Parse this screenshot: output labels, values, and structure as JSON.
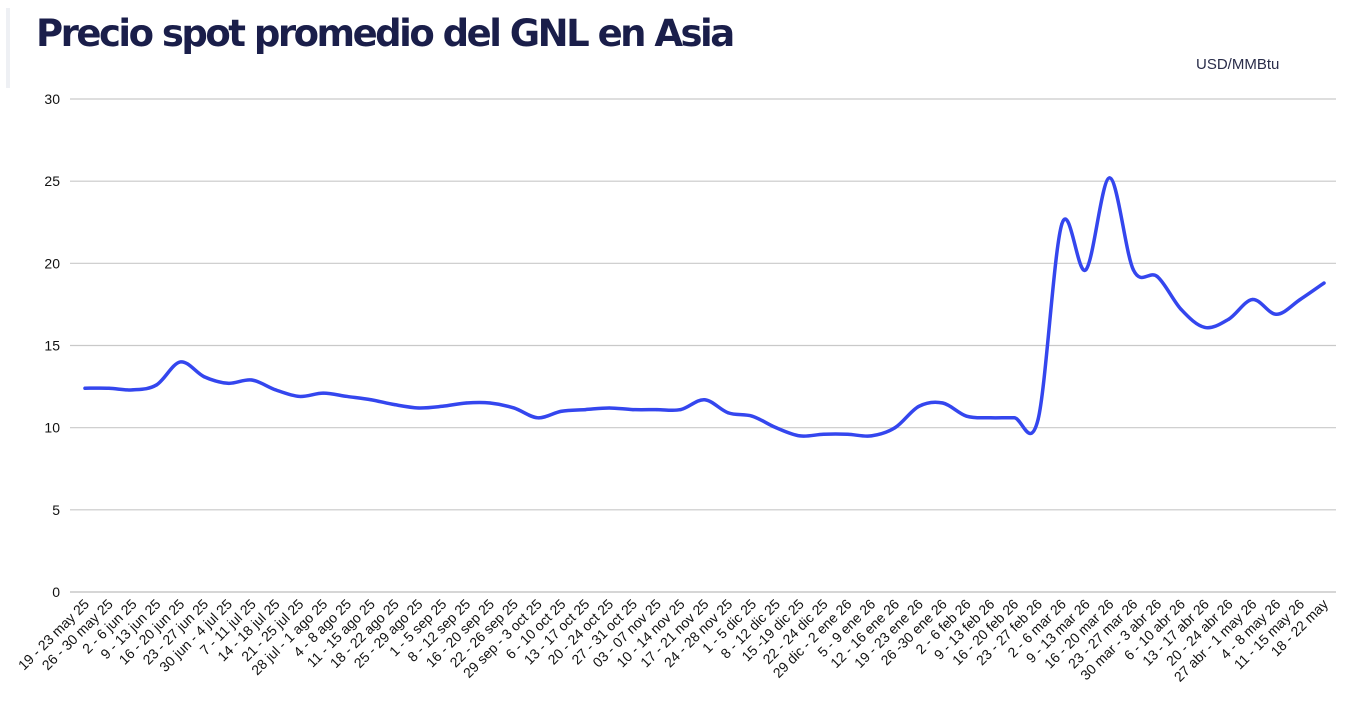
{
  "chart_data": {
    "type": "line",
    "title": "Precio spot promedio del GNL en Asia",
    "ylabel": "USD/MMBtu",
    "xlabel": "",
    "ylim": [
      0,
      30
    ],
    "yticks": [
      "0",
      "5",
      "10",
      "15",
      "20",
      "25",
      "30"
    ],
    "grid": true,
    "line_color": "#3446ee",
    "grid_color": "#c9c9c9",
    "categories": [
      "19 - 23 may 25",
      "26 - 30 may 25",
      "2 - 6 jun 25",
      "9 - 13 jun 25",
      "16 - 20 jun 25",
      "23 - 27 jun 25",
      "30 jun - 4 jul 25",
      "7 - 11 jul 25",
      "14 - 18 jul 25",
      "21 - 25 jul 25",
      "28 jul - 1 ago 25",
      "4 - 8 ago 25",
      "11 - 15 ago 25",
      "18 - 22 ago 25",
      "25 - 29 ago 25",
      "1 - 5 sep 25",
      "8 - 12 sep 25",
      "16 - 20 sep 25",
      "22 - 26 sep 25",
      "29 sep - 3 oct 25",
      "6 - 10 oct 25",
      "13 - 17 oct 25",
      "20 - 24 oct 25",
      "27 - 31 oct 25",
      "03 - 07 nov 25",
      "10 - 14 nov 25",
      "17 - 21 nov 25",
      "24 - 28 nov 25",
      "1 - 5 dic 25",
      "8 - 12 dic 25",
      "15 -19 dic 25",
      "22 - 24 dic 25",
      "29 dic - 2 ene 26",
      "5 - 9 ene 26",
      "12 - 16 ene 26",
      "19 - 23 ene 26",
      "26 -30 ene 26",
      "2 - 6 feb 26",
      "9 - 13 feb 26",
      "16 - 20 feb 26",
      "23 - 27 feb 26",
      "2 - 6 mar 26",
      "9 - 13 mar 26",
      "16 - 20 mar 26",
      "23 - 27 mar 26",
      "30 mar - 3 abr 26",
      "6 - 10 abr 26",
      "13 - 17 abr 26",
      "20 - 24 abr 26",
      "27 abr - 1 may 26",
      "4 - 8 may 26",
      "11 - 15 may 26",
      "18 - 22 may"
    ],
    "values": [
      12.4,
      12.4,
      12.3,
      12.6,
      14.0,
      13.1,
      12.7,
      12.9,
      12.3,
      11.9,
      12.1,
      11.9,
      11.7,
      11.4,
      11.2,
      11.3,
      11.5,
      11.5,
      11.2,
      10.6,
      11.0,
      11.1,
      11.2,
      11.1,
      11.1,
      11.1,
      11.7,
      10.9,
      10.7,
      10.0,
      9.5,
      9.6,
      9.6,
      9.5,
      10.0,
      11.3,
      11.5,
      10.7,
      10.6,
      10.6,
      10.5,
      22.4,
      19.6,
      25.2,
      19.6,
      19.2,
      17.2,
      16.1,
      16.6,
      17.8,
      16.9,
      17.8,
      18.8
    ]
  }
}
